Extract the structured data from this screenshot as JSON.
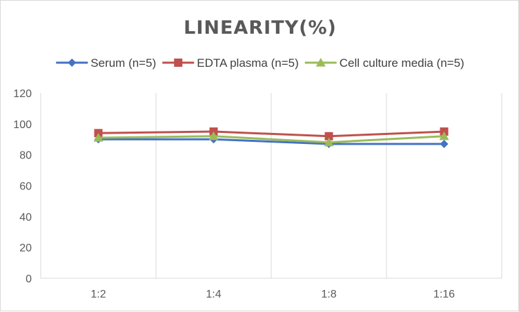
{
  "chart_data": {
    "type": "line",
    "title": "LINEARITY(%)",
    "categories": [
      "1:2",
      "1:4",
      "1:8",
      "1:16"
    ],
    "ylim": [
      0,
      120
    ],
    "yticks": [
      0,
      20,
      40,
      60,
      80,
      100,
      120
    ],
    "grid": "vertical",
    "legend_position": "top",
    "series": [
      {
        "name": "Serum (n=5)",
        "values": [
          90,
          90,
          87,
          87
        ],
        "color": "#4472c4",
        "marker": "diamond"
      },
      {
        "name": "EDTA plasma (n=5)",
        "values": [
          94,
          95,
          92,
          95
        ],
        "color": "#c0504d",
        "marker": "square"
      },
      {
        "name": "Cell culture media (n=5)",
        "values": [
          91,
          92,
          88,
          92
        ],
        "color": "#9bbb59",
        "marker": "triangle"
      }
    ]
  }
}
